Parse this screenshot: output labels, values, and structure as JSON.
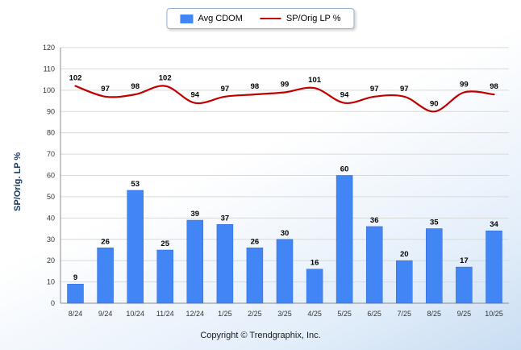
{
  "chart_data": {
    "type": "combo",
    "categories": [
      "8/24",
      "9/24",
      "10/24",
      "11/24",
      "12/24",
      "1/25",
      "2/25",
      "3/25",
      "4/25",
      "5/25",
      "6/25",
      "7/25",
      "8/25",
      "9/25",
      "10/25"
    ],
    "series": [
      {
        "name": "Avg CDOM",
        "type": "bar",
        "color": "#4285f4",
        "edge_color": "#2f67d8",
        "values": [
          9,
          26,
          53,
          25,
          39,
          37,
          26,
          30,
          16,
          60,
          36,
          20,
          35,
          17,
          34
        ]
      },
      {
        "name": "SP/Orig LP %",
        "type": "line",
        "color": "#c00000",
        "values": [
          102,
          97,
          98,
          102,
          94,
          97,
          98,
          99,
          101,
          94,
          97,
          97,
          90,
          99,
          98
        ]
      }
    ],
    "title": "",
    "xlabel": "",
    "ylabel": "SP/Orig. LP %",
    "ylim": [
      0,
      120
    ],
    "ytick_step": 10,
    "grid": true,
    "legend_position": "top",
    "grid_color": "#d9d9d9",
    "axis_color": "#8c8c8c",
    "tick_label_color": "#333333",
    "data_label_color": "#000000"
  },
  "footer": {
    "copyright": "Copyright © Trendgraphix, Inc."
  }
}
